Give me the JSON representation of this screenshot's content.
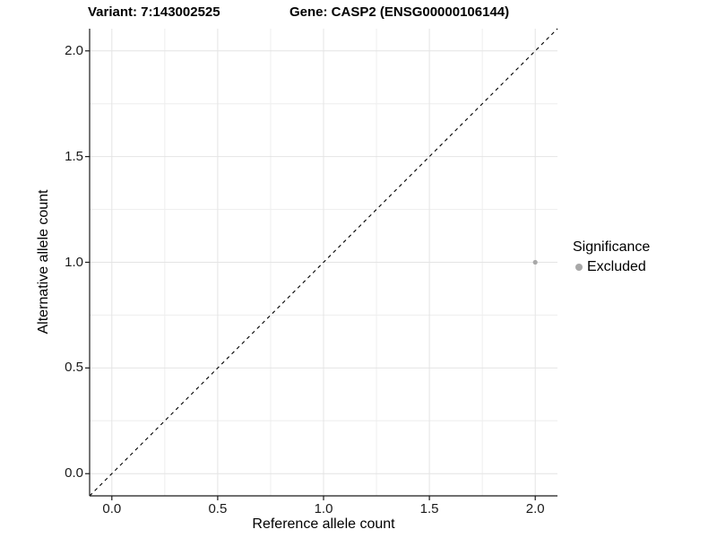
{
  "header": {
    "variant_title": "Variant: 7:143002525",
    "gene_title": "Gene: CASP2 (ENSG00000106144)"
  },
  "chart_data": {
    "type": "scatter",
    "title_parts": {
      "variant": "Variant: 7:143002525",
      "gene": "Gene: CASP2 (ENSG00000106144)"
    },
    "xlabel": "Reference allele count",
    "ylabel": "Alternative allele count",
    "xlim": [
      -0.105,
      2.105
    ],
    "ylim": [
      -0.105,
      2.105
    ],
    "x_ticks": {
      "values": [
        0,
        0.5,
        1,
        1.5,
        2
      ],
      "labels": [
        "0.0",
        "0.5",
        "1.0",
        "1.5",
        "2.0"
      ]
    },
    "y_ticks": {
      "values": [
        0,
        0.5,
        1,
        1.5,
        2
      ],
      "labels": [
        "0.0",
        "0.5",
        "1.0",
        "1.5",
        "2.0"
      ]
    },
    "x_minor_ticks": [
      0.25,
      0.75,
      1.25,
      1.75
    ],
    "y_minor_ticks": [
      0.25,
      0.75,
      1.25,
      1.75
    ],
    "grid": "major+minor",
    "reference_line": {
      "style": "dashed",
      "from": [
        -0.105,
        -0.105
      ],
      "to": [
        2.105,
        2.105
      ],
      "color": "#000000"
    },
    "series": [
      {
        "name": "Excluded",
        "color": "#a8a8a8",
        "points": [
          {
            "x": 2.0,
            "y": 1.0
          }
        ]
      }
    ],
    "legend": {
      "title": "Significance",
      "position": "right",
      "items": [
        {
          "label": "Excluded",
          "color": "#a8a8a8"
        }
      ]
    },
    "colors": {
      "background": "#ffffff",
      "grid_major": "#e4e4e4",
      "grid_minor": "#eeeeee",
      "axis_line": "#1a1a1a",
      "tick_mark": "#1a1a1a",
      "point": "#a8a8a8",
      "reference_line": "#000000"
    }
  }
}
